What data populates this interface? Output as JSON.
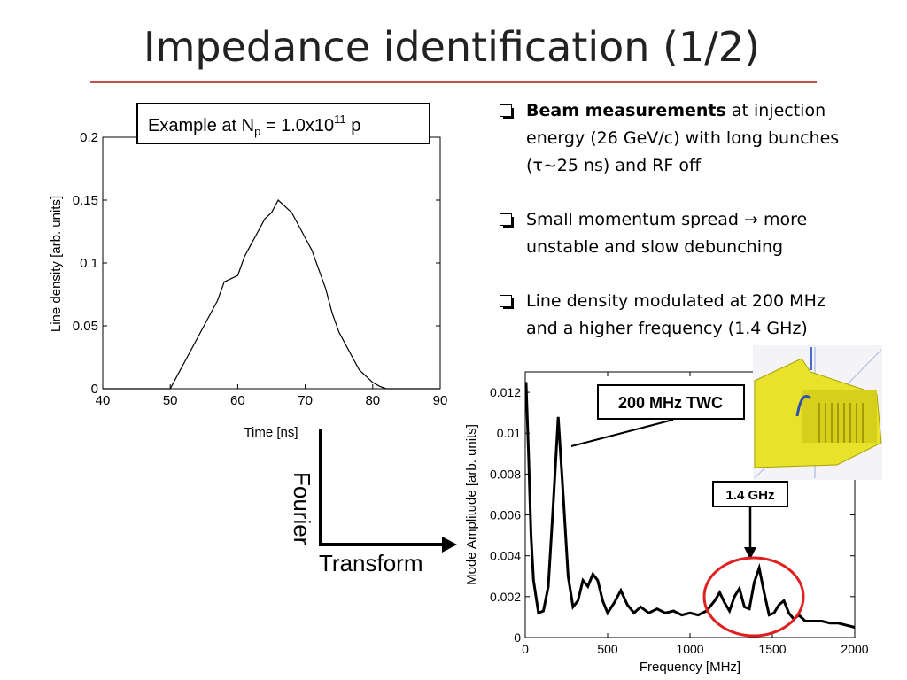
{
  "slide": {
    "title": "Impedance identification (1/2)",
    "accent_color": "#c0504d"
  },
  "bullets": [
    {
      "icon": "checkbox-icon",
      "bold": "Beam measurements",
      "text_line1": " at injection",
      "text_line2": "energy (26 GeV/c) with long bunches",
      "text_line3": "(τ∼25 ns) and RF off"
    },
    {
      "icon": "checkbox-icon",
      "line1_text": "Small momentum spread",
      "arrow": "→",
      "line1_after": " more",
      "line2": "unstable and slow debunching"
    },
    {
      "icon": "checkbox-icon",
      "line1": "Line density modulated at 200 MHz",
      "line2": "and a higher frequency (1.4 GHz)"
    }
  ],
  "annotations": {
    "example_prefix": "Example at N",
    "example_sub": "p",
    "example_mid": " = 1.0x10",
    "example_sup": "11",
    "example_suffix": " p",
    "fourier_label": "Fourier",
    "transform_label": "Transform",
    "twc_label": "200 MHz TWC",
    "ghz_label": "1.4 GHz"
  },
  "chart_data": [
    {
      "type": "line",
      "xlabel": "Time [ns]",
      "ylabel": "Line density [arb. units]",
      "xlim": [
        40,
        90
      ],
      "ylim": [
        0,
        0.2
      ],
      "xticks": [
        "40",
        "50",
        "60",
        "70",
        "80",
        "90"
      ],
      "yticks": [
        "0",
        "0.05",
        "0.1",
        "0.15",
        "0.2"
      ],
      "grid": false,
      "series": [
        {
          "x": [
            40,
            45,
            50,
            51,
            53,
            55,
            57,
            58,
            60,
            61,
            62,
            63,
            64,
            65,
            66,
            67,
            68,
            69,
            70,
            71,
            72,
            73,
            74,
            75,
            76,
            77,
            78,
            79,
            80,
            81,
            82,
            85,
            90
          ],
          "y": [
            0,
            0,
            0,
            0.01,
            0.03,
            0.05,
            0.07,
            0.085,
            0.09,
            0.105,
            0.115,
            0.125,
            0.135,
            0.14,
            0.15,
            0.145,
            0.14,
            0.13,
            0.12,
            0.11,
            0.095,
            0.08,
            0.06,
            0.045,
            0.035,
            0.025,
            0.015,
            0.01,
            0.005,
            0.002,
            0,
            0,
            0
          ]
        }
      ]
    },
    {
      "type": "line",
      "xlabel": "Frequency [MHz]",
      "ylabel": "Mode Amplitude [arb. units]",
      "xlim": [
        0,
        2000
      ],
      "ylim": [
        0,
        0.013
      ],
      "xticks": [
        "0",
        "500",
        "1000",
        "1500",
        "2000"
      ],
      "yticks": [
        "0",
        "0.002",
        "0.004",
        "0.006",
        "0.008",
        "0.01",
        "0.012"
      ],
      "grid": false,
      "series": [
        {
          "x": [
            5,
            20,
            35,
            50,
            80,
            110,
            140,
            170,
            200,
            230,
            260,
            290,
            320,
            350,
            380,
            410,
            440,
            470,
            500,
            540,
            580,
            620,
            660,
            700,
            750,
            800,
            850,
            900,
            950,
            1000,
            1050,
            1100,
            1150,
            1180,
            1210,
            1240,
            1270,
            1300,
            1330,
            1360,
            1390,
            1420,
            1450,
            1480,
            1510,
            1540,
            1570,
            1600,
            1630,
            1660,
            1700,
            1750,
            1800,
            1850,
            1900,
            1950,
            2000
          ],
          "y": [
            0.0125,
            0.009,
            0.005,
            0.0028,
            0.0012,
            0.0013,
            0.0025,
            0.0065,
            0.0108,
            0.007,
            0.003,
            0.0015,
            0.0018,
            0.0028,
            0.0025,
            0.0031,
            0.0028,
            0.0018,
            0.0012,
            0.0017,
            0.0023,
            0.0016,
            0.0012,
            0.0015,
            0.0012,
            0.0014,
            0.0012,
            0.0013,
            0.0011,
            0.0012,
            0.0011,
            0.0013,
            0.0018,
            0.0022,
            0.0017,
            0.0013,
            0.002,
            0.0024,
            0.0015,
            0.0014,
            0.0027,
            0.0034,
            0.0022,
            0.0011,
            0.0012,
            0.0016,
            0.0018,
            0.0012,
            0.0009,
            0.0011,
            0.0008,
            0.0008,
            0.0008,
            0.0007,
            0.0007,
            0.0006,
            0.0005
          ]
        }
      ]
    }
  ]
}
